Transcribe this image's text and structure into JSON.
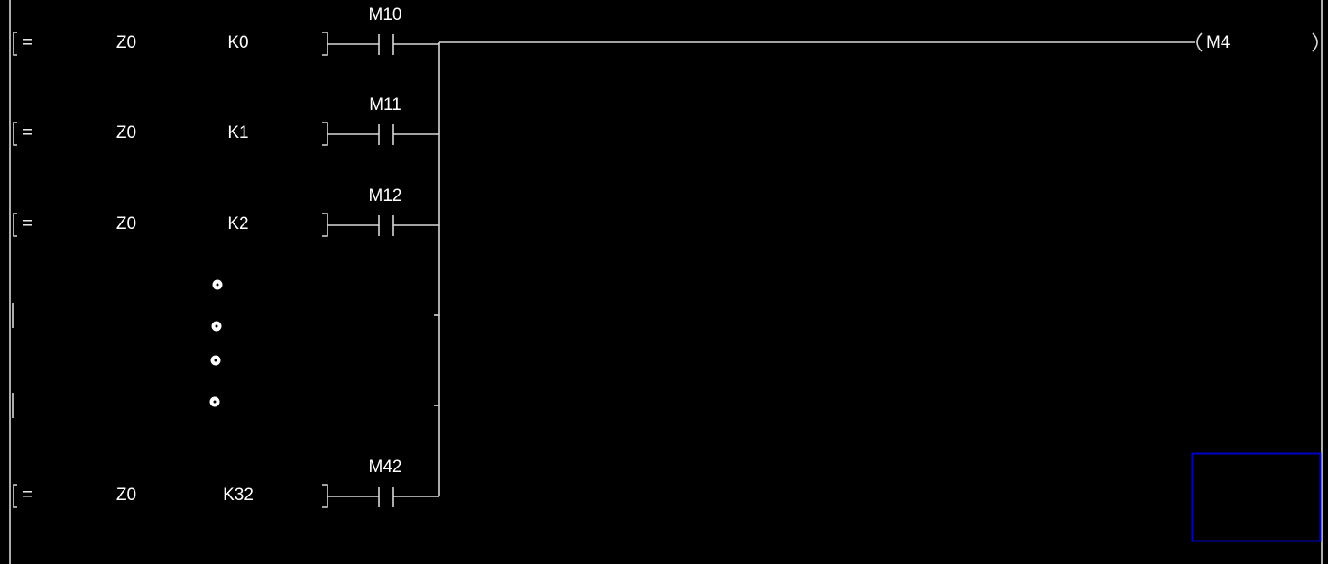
{
  "ladder": {
    "rungs": [
      {
        "op": "=",
        "src": "Z0",
        "val": "K0",
        "contact": "M10"
      },
      {
        "op": "=",
        "src": "Z0",
        "val": "K1",
        "contact": "M11"
      },
      {
        "op": "=",
        "src": "Z0",
        "val": "K2",
        "contact": "M12"
      },
      {
        "op": "=",
        "src": "Z0",
        "val": "K32",
        "contact": "M42"
      }
    ],
    "coil": "M4",
    "continuation_dots": 4,
    "colors": {
      "background": "#000000",
      "line": "#d8d8d8",
      "text": "#ffffff",
      "cursor": "#0000c8"
    }
  }
}
